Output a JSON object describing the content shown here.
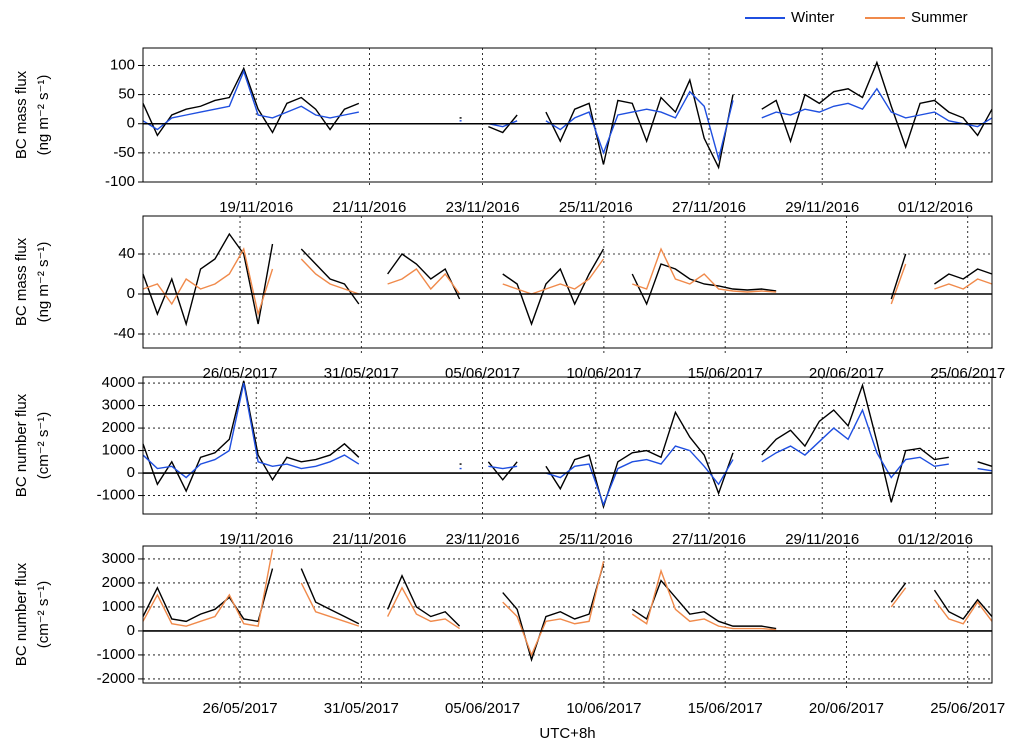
{
  "legend_position": "top-right",
  "chart_data": [
    {
      "type": "line",
      "y_label": "BC mass flux",
      "y_unit": "(ng m⁻² s⁻¹)",
      "ylim": [
        -100,
        130
      ],
      "yticks": [
        -100,
        -50,
        0,
        50,
        100
      ],
      "xlim": [
        "2016-11-17",
        "2016-12-02"
      ],
      "xticks": [
        {
          "value": "2016-11-19",
          "label": "19/11/2016"
        },
        {
          "value": "2016-11-21",
          "label": "21/11/2016"
        },
        {
          "value": "2016-11-23",
          "label": "23/11/2016"
        },
        {
          "value": "2016-11-25",
          "label": "25/11/2016"
        },
        {
          "value": "2016-11-27",
          "label": "27/11/2016"
        },
        {
          "value": "2016-11-29",
          "label": "29/11/2016"
        },
        {
          "value": "2016-12-01",
          "label": "01/12/2016"
        }
      ],
      "grid": true,
      "series": [
        {
          "color": "#000000",
          "values": [
            35,
            -20,
            15,
            25,
            30,
            40,
            45,
            95,
            25,
            -15,
            35,
            45,
            25,
            -10,
            25,
            35,
            null,
            null,
            null,
            null,
            null,
            null,
            10,
            null,
            -5,
            -15,
            15,
            null,
            20,
            -30,
            25,
            35,
            -70,
            40,
            35,
            -30,
            45,
            20,
            75,
            -25,
            -75,
            50,
            null,
            25,
            40,
            -30,
            50,
            35,
            55,
            60,
            45,
            105,
            30,
            -40,
            35,
            40,
            20,
            10,
            -20,
            25
          ]
        },
        {
          "name": "Winter",
          "color": "#1f4fe0",
          "values": [
            5,
            -10,
            10,
            15,
            20,
            25,
            30,
            90,
            15,
            10,
            20,
            30,
            15,
            10,
            15,
            20,
            null,
            null,
            null,
            null,
            null,
            null,
            5,
            null,
            0,
            -5,
            5,
            null,
            5,
            -10,
            10,
            20,
            -50,
            15,
            20,
            25,
            20,
            10,
            55,
            30,
            -60,
            40,
            null,
            10,
            20,
            15,
            25,
            20,
            30,
            35,
            25,
            60,
            20,
            10,
            15,
            20,
            5,
            0,
            -5,
            10
          ]
        }
      ]
    },
    {
      "type": "line",
      "y_label": "BC mass flux",
      "y_unit": "(ng m⁻² s⁻¹)",
      "ylim": [
        -54,
        78
      ],
      "yticks": [
        -40,
        0,
        40
      ],
      "xlim": [
        "2017-05-22",
        "2017-06-26"
      ],
      "xticks": [
        {
          "value": "2017-05-26",
          "label": "26/05/2017"
        },
        {
          "value": "2017-05-31",
          "label": "31/05/2017"
        },
        {
          "value": "2017-06-05",
          "label": "05/06/2017"
        },
        {
          "value": "2017-06-10",
          "label": "10/06/2017"
        },
        {
          "value": "2017-06-15",
          "label": "15/06/2017"
        },
        {
          "value": "2017-06-20",
          "label": "20/06/2017"
        },
        {
          "value": "2017-06-25",
          "label": "25/06/2017"
        }
      ],
      "grid": true,
      "series": [
        {
          "color": "#000000",
          "values": [
            20,
            -20,
            15,
            -30,
            25,
            35,
            60,
            40,
            -30,
            50,
            null,
            45,
            30,
            15,
            10,
            -10,
            null,
            20,
            40,
            30,
            15,
            25,
            -5,
            null,
            null,
            20,
            10,
            -30,
            10,
            25,
            -10,
            20,
            45,
            null,
            20,
            -10,
            30,
            25,
            15,
            10,
            8,
            5,
            4,
            5,
            3,
            null,
            null,
            null,
            null,
            null,
            null,
            null,
            -5,
            40,
            null,
            10,
            20,
            15,
            25,
            20
          ]
        },
        {
          "name": "Summer",
          "color": "#f08a4b",
          "values": [
            5,
            10,
            -10,
            15,
            5,
            10,
            20,
            45,
            -20,
            25,
            null,
            35,
            20,
            10,
            5,
            0,
            null,
            10,
            15,
            25,
            5,
            20,
            0,
            null,
            null,
            10,
            5,
            0,
            5,
            10,
            5,
            15,
            35,
            null,
            10,
            5,
            45,
            15,
            10,
            20,
            5,
            3,
            2,
            3,
            2,
            null,
            null,
            null,
            null,
            null,
            null,
            null,
            -10,
            30,
            null,
            5,
            10,
            5,
            15,
            10
          ]
        }
      ]
    },
    {
      "type": "line",
      "y_label": "BC number flux",
      "y_unit": "(cm⁻² s⁻¹)",
      "ylim": [
        -1820,
        4270
      ],
      "yticks": [
        -1000,
        0,
        1000,
        2000,
        3000,
        4000
      ],
      "xlim": [
        "2016-11-17",
        "2016-12-02"
      ],
      "xticks": [
        {
          "value": "2016-11-19",
          "label": "19/11/2016"
        },
        {
          "value": "2016-11-21",
          "label": "21/11/2016"
        },
        {
          "value": "2016-11-23",
          "label": "23/11/2016"
        },
        {
          "value": "2016-11-25",
          "label": "25/11/2016"
        },
        {
          "value": "2016-11-27",
          "label": "27/11/2016"
        },
        {
          "value": "2016-11-29",
          "label": "29/11/2016"
        },
        {
          "value": "2016-12-01",
          "label": "01/12/2016"
        }
      ],
      "grid": true,
      "series": [
        {
          "color": "#000000",
          "values": [
            1300,
            -500,
            500,
            -800,
            700,
            900,
            1500,
            4100,
            800,
            -300,
            700,
            500,
            600,
            800,
            1300,
            700,
            null,
            null,
            null,
            null,
            null,
            null,
            400,
            null,
            500,
            -300,
            500,
            null,
            300,
            -700,
            600,
            800,
            -1500,
            500,
            900,
            1000,
            700,
            2700,
            1600,
            800,
            -900,
            900,
            null,
            800,
            1500,
            1900,
            1200,
            2300,
            2800,
            2100,
            3900,
            1400,
            -1300,
            1000,
            1100,
            600,
            700,
            null,
            500,
            300
          ]
        },
        {
          "name": "Winter",
          "color": "#1f4fe0",
          "values": [
            800,
            200,
            300,
            -200,
            400,
            600,
            1000,
            4000,
            500,
            300,
            400,
            200,
            300,
            500,
            800,
            400,
            null,
            null,
            null,
            null,
            null,
            null,
            200,
            null,
            300,
            200,
            300,
            null,
            0,
            -200,
            300,
            400,
            -1400,
            200,
            500,
            600,
            400,
            1200,
            1000,
            300,
            -500,
            600,
            null,
            500,
            900,
            1200,
            800,
            1400,
            2000,
            1500,
            2800,
            900,
            -200,
            600,
            700,
            300,
            400,
            null,
            200,
            100
          ]
        }
      ]
    },
    {
      "type": "line",
      "y_label": "BC number flux",
      "y_unit": "(cm⁻² s⁻¹)",
      "x_label": "UTC+8h",
      "ylim": [
        -2170,
        3540
      ],
      "yticks": [
        -2000,
        -1000,
        0,
        1000,
        2000,
        3000
      ],
      "xlim": [
        "2017-05-22",
        "2017-06-26"
      ],
      "xticks": [
        {
          "value": "2017-05-26",
          "label": "26/05/2017"
        },
        {
          "value": "2017-05-31",
          "label": "31/05/2017"
        },
        {
          "value": "2017-06-05",
          "label": "05/06/2017"
        },
        {
          "value": "2017-06-10",
          "label": "10/06/2017"
        },
        {
          "value": "2017-06-15",
          "label": "15/06/2017"
        },
        {
          "value": "2017-06-20",
          "label": "20/06/2017"
        },
        {
          "value": "2017-06-25",
          "label": "25/06/2017"
        }
      ],
      "grid": true,
      "series": [
        {
          "color": "#000000",
          "values": [
            600,
            1800,
            500,
            400,
            700,
            900,
            1400,
            500,
            400,
            2600,
            null,
            2600,
            1200,
            900,
            600,
            300,
            null,
            900,
            2300,
            1000,
            600,
            800,
            200,
            null,
            null,
            1600,
            900,
            -1200,
            600,
            800,
            500,
            700,
            2800,
            null,
            900,
            500,
            2100,
            1400,
            700,
            800,
            400,
            200,
            200,
            200,
            100,
            null,
            null,
            null,
            null,
            null,
            null,
            null,
            1200,
            2000,
            null,
            1700,
            800,
            500,
            1300,
            600
          ]
        },
        {
          "name": "Summer",
          "color": "#f08a4b",
          "values": [
            400,
            1500,
            300,
            200,
            400,
            600,
            1500,
            300,
            200,
            3400,
            null,
            2000,
            800,
            600,
            400,
            200,
            null,
            600,
            1800,
            700,
            400,
            500,
            100,
            null,
            null,
            1200,
            600,
            -1000,
            400,
            500,
            300,
            400,
            2900,
            null,
            700,
            300,
            2500,
            900,
            400,
            500,
            200,
            100,
            100,
            100,
            50,
            null,
            null,
            null,
            null,
            null,
            null,
            null,
            1000,
            1800,
            null,
            1300,
            500,
            300,
            1200,
            400
          ]
        }
      ]
    }
  ]
}
